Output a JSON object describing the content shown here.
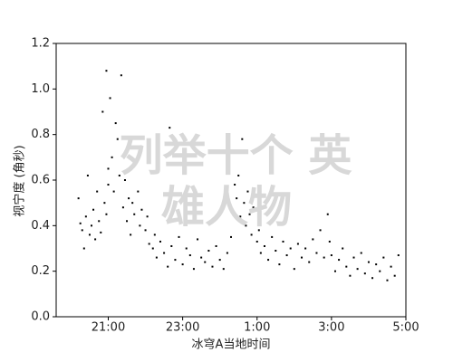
{
  "chart_data": {
    "type": "scatter",
    "xlabel": "冰穹A当地时间",
    "ylabel": "视宁度 (角秒)",
    "watermark": [
      "列举十个 英",
      "雄人物"
    ],
    "color": "#000000",
    "xlim": [
      19.6,
      29
    ],
    "ylim": [
      0,
      1.2
    ],
    "xticks": [
      {
        "value": 21,
        "label": "21:00"
      },
      {
        "value": 23,
        "label": "23:00"
      },
      {
        "value": 25,
        "label": "1:00"
      },
      {
        "value": 27,
        "label": "3:00"
      },
      {
        "value": 29,
        "label": "5:00"
      }
    ],
    "yticks": [
      {
        "value": 0,
        "label": "0.0"
      },
      {
        "value": 0.2,
        "label": "0.2"
      },
      {
        "value": 0.4,
        "label": "0.4"
      },
      {
        "value": 0.6,
        "label": "0.6"
      },
      {
        "value": 0.8,
        "label": "0.8"
      },
      {
        "value": 1.0,
        "label": "1.0"
      },
      {
        "value": 1.2,
        "label": "1.2"
      }
    ],
    "x": [
      20.2,
      20.25,
      20.3,
      20.35,
      20.4,
      20.45,
      20.5,
      20.55,
      20.6,
      20.65,
      20.7,
      20.75,
      20.8,
      20.85,
      20.9,
      20.95,
      21.0,
      21.0,
      20.95,
      21.05,
      21.1,
      21.15,
      21.2,
      21.25,
      21.3,
      21.35,
      21.4,
      21.45,
      21.5,
      21.55,
      21.6,
      21.65,
      21.7,
      21.8,
      21.85,
      21.9,
      22.0,
      22.05,
      22.1,
      22.2,
      22.25,
      22.3,
      22.4,
      22.5,
      22.6,
      22.65,
      22.7,
      22.8,
      22.9,
      23.0,
      23.1,
      23.2,
      23.3,
      23.4,
      23.5,
      23.6,
      23.7,
      23.8,
      23.9,
      24.0,
      24.1,
      24.2,
      24.3,
      24.35,
      24.4,
      24.45,
      24.5,
      24.55,
      24.6,
      24.65,
      24.7,
      24.75,
      24.8,
      24.85,
      24.9,
      25.0,
      25.05,
      25.1,
      25.2,
      25.3,
      25.4,
      25.5,
      25.6,
      25.7,
      25.8,
      25.9,
      26.0,
      26.1,
      26.2,
      26.3,
      26.4,
      26.5,
      26.6,
      26.7,
      26.8,
      26.9,
      26.95,
      27.0,
      27.1,
      27.2,
      27.3,
      27.4,
      27.5,
      27.6,
      27.7,
      27.8,
      27.9,
      28.0,
      28.1,
      28.2,
      28.3,
      28.4,
      28.5,
      28.6,
      28.7,
      28.8
    ],
    "values": [
      0.52,
      0.41,
      0.38,
      0.3,
      0.44,
      0.62,
      0.36,
      0.4,
      0.47,
      0.34,
      0.55,
      0.42,
      0.37,
      0.9,
      0.5,
      0.45,
      0.58,
      0.65,
      1.08,
      0.96,
      0.7,
      0.55,
      0.85,
      0.78,
      0.62,
      1.06,
      0.48,
      0.6,
      0.42,
      0.52,
      0.36,
      0.5,
      0.45,
      0.55,
      0.4,
      0.47,
      0.38,
      0.44,
      0.32,
      0.3,
      0.36,
      0.26,
      0.33,
      0.28,
      0.22,
      0.83,
      0.31,
      0.25,
      0.35,
      0.23,
      0.3,
      0.27,
      0.21,
      0.34,
      0.26,
      0.24,
      0.29,
      0.22,
      0.31,
      0.25,
      0.21,
      0.28,
      0.35,
      0.46,
      0.58,
      0.52,
      0.62,
      0.44,
      0.78,
      0.5,
      0.4,
      0.55,
      0.45,
      0.36,
      0.48,
      0.33,
      0.38,
      0.28,
      0.31,
      0.25,
      0.35,
      0.29,
      0.23,
      0.33,
      0.27,
      0.3,
      0.21,
      0.32,
      0.26,
      0.3,
      0.24,
      0.34,
      0.28,
      0.38,
      0.26,
      0.45,
      0.33,
      0.27,
      0.2,
      0.25,
      0.3,
      0.22,
      0.18,
      0.26,
      0.21,
      0.28,
      0.19,
      0.24,
      0.17,
      0.23,
      0.2,
      0.26,
      0.16,
      0.22,
      0.18,
      0.27
    ]
  }
}
